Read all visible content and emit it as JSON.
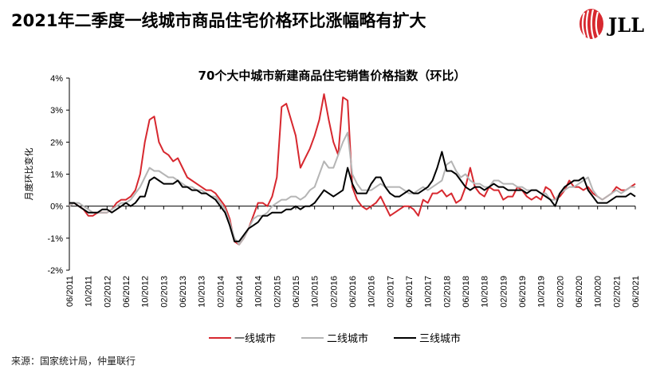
{
  "headline": "2021年二季度一线城市商品住宅价格环比涨幅略有扩大",
  "logo_text": "JLL",
  "source": "来源：国家统计局，仲量联行",
  "colors": {
    "tier1": "#d7282f",
    "tier2": "#b5b5b5",
    "tier3": "#000000",
    "brand": "#d7282f"
  },
  "chart_data": {
    "type": "line",
    "title": "70个大中城市新建商品住宅销售价格指数（环比）",
    "ylabel": "月度环比变化",
    "xlabel": "",
    "ylim": [
      -2,
      4
    ],
    "y_ticks": [
      "-2%",
      "-1%",
      "0%",
      "1%",
      "2%",
      "3%",
      "4%"
    ],
    "x_ticks": [
      "06/2011",
      "10/2011",
      "02/2012",
      "06/2012",
      "10/2012",
      "02/2013",
      "06/2013",
      "10/2013",
      "02/2014",
      "06/2014",
      "10/2014",
      "02/2015",
      "06/2015",
      "10/2015",
      "02/2016",
      "06/2016",
      "10/2016",
      "02/2017",
      "06/2017",
      "10/2017",
      "02/2018",
      "06/2018",
      "10/2018",
      "02/2019",
      "06/2019",
      "10/2019",
      "02/2020",
      "06/2020",
      "10/2020",
      "02/2021",
      "06/2021"
    ],
    "x_start": "06/2011",
    "x_end": "06/2021",
    "grid": false,
    "legend": "bottom",
    "series": [
      {
        "name": "一线城市",
        "color": "#d7282f",
        "values": [
          0.0,
          0.1,
          0.0,
          -0.1,
          -0.3,
          -0.3,
          -0.2,
          -0.2,
          -0.2,
          -0.1,
          0.1,
          0.2,
          0.2,
          0.3,
          0.5,
          1.0,
          2.0,
          2.7,
          2.8,
          2.0,
          1.7,
          1.6,
          1.4,
          1.5,
          1.2,
          0.9,
          0.8,
          0.7,
          0.6,
          0.5,
          0.5,
          0.4,
          0.2,
          0.0,
          -0.4,
          -1.1,
          -1.2,
          -1.0,
          -0.7,
          -0.3,
          0.1,
          0.1,
          0.0,
          0.3,
          0.9,
          3.1,
          3.2,
          2.7,
          2.2,
          1.2,
          1.5,
          1.8,
          2.2,
          2.7,
          3.5,
          2.7,
          2.0,
          1.6,
          3.4,
          3.3,
          0.6,
          0.2,
          0.0,
          -0.1,
          0.0,
          0.1,
          0.3,
          0.0,
          -0.3,
          -0.2,
          -0.1,
          0.0,
          0.0,
          -0.1,
          -0.3,
          0.2,
          0.1,
          0.4,
          0.4,
          0.5,
          0.3,
          0.4,
          0.1,
          0.2,
          0.6,
          1.2,
          0.6,
          0.4,
          0.3,
          0.6,
          0.5,
          0.5,
          0.2,
          0.3,
          0.3,
          0.6,
          0.5,
          0.3,
          0.2,
          0.3,
          0.2,
          0.6,
          0.5,
          0.2,
          0.3,
          0.5,
          0.8,
          0.6,
          0.6,
          0.5,
          0.6,
          0.4,
          0.3,
          0.2,
          0.3,
          0.4,
          0.6,
          0.5,
          0.5,
          0.6,
          0.7
        ]
      },
      {
        "name": "二线城市",
        "color": "#b5b5b5",
        "values": [
          0.0,
          0.1,
          0.1,
          0.0,
          -0.1,
          -0.2,
          -0.2,
          -0.2,
          -0.2,
          -0.1,
          0.0,
          0.1,
          0.1,
          0.2,
          0.4,
          0.6,
          0.9,
          1.2,
          1.1,
          1.1,
          1.0,
          0.9,
          0.9,
          0.8,
          0.7,
          0.6,
          0.6,
          0.5,
          0.5,
          0.4,
          0.3,
          0.3,
          0.1,
          -0.1,
          -0.5,
          -1.0,
          -1.2,
          -1.0,
          -0.7,
          -0.4,
          -0.3,
          -0.3,
          -0.2,
          0.0,
          0.1,
          0.2,
          0.2,
          0.3,
          0.3,
          0.2,
          0.3,
          0.5,
          0.6,
          1.0,
          1.4,
          1.2,
          1.2,
          1.6,
          2.0,
          2.3,
          1.0,
          0.7,
          0.5,
          0.5,
          0.5,
          0.6,
          0.7,
          0.6,
          0.6,
          0.6,
          0.6,
          0.5,
          0.4,
          0.4,
          0.5,
          0.6,
          0.5,
          0.6,
          0.7,
          0.8,
          1.3,
          1.4,
          1.1,
          0.9,
          1.0,
          0.8,
          0.7,
          0.7,
          0.6,
          0.6,
          0.8,
          0.8,
          0.7,
          0.7,
          0.7,
          0.6,
          0.6,
          0.5,
          0.5,
          0.5,
          0.4,
          0.4,
          0.2,
          0.2,
          0.4,
          0.5,
          0.6,
          0.6,
          0.7,
          0.8,
          0.9,
          0.5,
          0.3,
          0.2,
          0.3,
          0.4,
          0.5,
          0.4,
          0.5,
          0.6,
          0.6
        ]
      },
      {
        "name": "三线城市",
        "color": "#000000",
        "values": [
          0.1,
          0.1,
          0.0,
          -0.1,
          -0.2,
          -0.2,
          -0.2,
          -0.1,
          -0.1,
          -0.2,
          -0.1,
          0.0,
          0.1,
          0.0,
          0.1,
          0.3,
          0.3,
          0.8,
          0.9,
          0.8,
          0.7,
          0.7,
          0.7,
          0.8,
          0.6,
          0.6,
          0.5,
          0.5,
          0.4,
          0.4,
          0.3,
          0.2,
          0.0,
          -0.2,
          -0.6,
          -1.1,
          -1.1,
          -0.9,
          -0.7,
          -0.6,
          -0.5,
          -0.3,
          -0.3,
          -0.2,
          -0.2,
          -0.2,
          -0.1,
          -0.1,
          0.0,
          -0.1,
          0.0,
          0.0,
          0.1,
          0.3,
          0.5,
          0.4,
          0.3,
          0.4,
          0.5,
          1.2,
          0.7,
          0.4,
          0.4,
          0.4,
          0.7,
          0.9,
          0.9,
          0.6,
          0.4,
          0.3,
          0.3,
          0.4,
          0.5,
          0.4,
          0.4,
          0.5,
          0.6,
          0.8,
          1.2,
          1.7,
          1.1,
          1.1,
          1.0,
          0.8,
          0.6,
          0.5,
          0.6,
          0.6,
          0.5,
          0.6,
          0.7,
          0.6,
          0.6,
          0.5,
          0.5,
          0.5,
          0.5,
          0.4,
          0.5,
          0.5,
          0.4,
          0.3,
          0.2,
          0.0,
          0.4,
          0.6,
          0.7,
          0.8,
          0.8,
          0.9,
          0.5,
          0.3,
          0.1,
          0.1,
          0.1,
          0.2,
          0.3,
          0.3,
          0.3,
          0.4,
          0.3
        ]
      }
    ]
  }
}
